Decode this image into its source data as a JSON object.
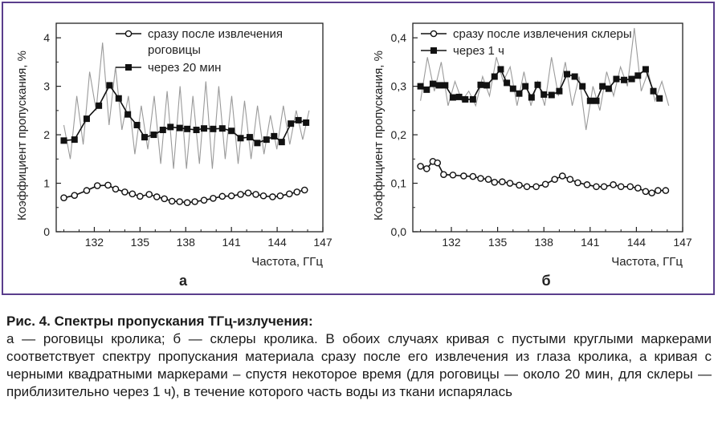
{
  "caption": {
    "title": "Рис. 4. Спектры пропускания ТГц-излучения:",
    "text": "а — роговицы кролика; б — склеры кролика. В обоих случаях кривая с пустыми круглыми маркерами соответствует спектру пропускания материала сразу после его извлечения из глаза кролика, а кривая с черными квадратными маркерами – спустя некоторое время (для роговицы — около 20 мин, для склеры — приблизительно через 1 ч), в течение которого часть воды из ткани испарялась"
  },
  "colors": {
    "frame": "#5a3e8c",
    "raw": "#9a9a9a",
    "marker": "#111111"
  },
  "chart_data": [
    {
      "panel_label": "а",
      "type": "line",
      "xlabel": "Частота, ГГц",
      "ylabel": "Коэффициент пропускания, %",
      "xlim": [
        129.5,
        147
      ],
      "ylim": [
        0,
        4.3
      ],
      "xticks": [
        132,
        135,
        138,
        141,
        144,
        147
      ],
      "yticks": [
        0,
        1,
        2,
        3,
        4
      ],
      "legend_position": "top",
      "series": [
        {
          "name": "сразу после извлечения роговицы",
          "marker": "open-circle",
          "x": [
            130.0,
            130.7,
            131.5,
            132.2,
            132.9,
            133.4,
            134.0,
            134.5,
            135.0,
            135.6,
            136.1,
            136.6,
            137.1,
            137.6,
            138.1,
            138.6,
            139.2,
            139.8,
            140.4,
            141.0,
            141.6,
            142.1,
            142.6,
            143.1,
            143.7,
            144.2,
            144.8,
            145.3,
            145.8
          ],
          "values": [
            0.7,
            0.75,
            0.85,
            0.95,
            0.96,
            0.88,
            0.82,
            0.78,
            0.73,
            0.77,
            0.72,
            0.68,
            0.63,
            0.62,
            0.6,
            0.62,
            0.65,
            0.69,
            0.73,
            0.74,
            0.77,
            0.8,
            0.77,
            0.74,
            0.72,
            0.74,
            0.78,
            0.82,
            0.86
          ]
        },
        {
          "name": "через 20 мин",
          "marker": "filled-square",
          "x": [
            130.0,
            130.7,
            131.5,
            132.3,
            133.0,
            133.6,
            134.2,
            134.8,
            135.3,
            135.9,
            136.5,
            137.0,
            137.6,
            138.1,
            138.7,
            139.2,
            139.8,
            140.4,
            141.0,
            141.6,
            142.2,
            142.7,
            143.3,
            143.8,
            144.3,
            144.9,
            145.4,
            145.9
          ],
          "values": [
            1.88,
            1.9,
            2.33,
            2.6,
            3.02,
            2.75,
            2.42,
            2.2,
            1.95,
            2.0,
            2.1,
            2.16,
            2.14,
            2.12,
            2.1,
            2.13,
            2.12,
            2.13,
            2.08,
            1.93,
            1.95,
            1.83,
            1.9,
            1.97,
            1.85,
            2.23,
            2.3,
            2.25
          ]
        }
      ],
      "raw_trace": [
        2.2,
        1.5,
        2.8,
        1.8,
        3.3,
        2.5,
        3.9,
        2.2,
        3.4,
        2.1,
        2.8,
        1.6,
        2.6,
        1.7,
        2.8,
        1.4,
        2.9,
        1.3,
        3.0,
        1.3,
        2.8,
        1.4,
        3.1,
        1.3,
        3.0,
        1.5,
        2.8,
        1.4,
        2.7,
        1.5,
        2.6,
        1.6,
        2.4,
        1.7,
        2.6,
        1.8,
        2.5,
        1.9,
        2.5
      ]
    },
    {
      "panel_label": "б",
      "type": "line",
      "xlabel": "Частота, ГГц",
      "ylabel": "Коэффициент пропускания, %",
      "xlim": [
        129.5,
        147
      ],
      "ylim": [
        0,
        0.43
      ],
      "xticks": [
        132,
        135,
        138,
        141,
        144,
        147
      ],
      "yticks": [
        0,
        0.1,
        0.2,
        0.3,
        0.4
      ],
      "legend_position": "top",
      "series": [
        {
          "name": "сразу после извлечения склеры",
          "marker": "open-circle",
          "x": [
            130.0,
            130.4,
            130.8,
            131.1,
            131.5,
            132.1,
            132.8,
            133.4,
            133.9,
            134.4,
            134.8,
            135.3,
            135.8,
            136.4,
            136.9,
            137.5,
            138.1,
            138.7,
            139.2,
            139.7,
            140.2,
            140.8,
            141.4,
            141.9,
            142.5,
            143.0,
            143.6,
            144.1,
            144.6,
            145.0,
            145.4,
            145.9
          ],
          "values": [
            0.135,
            0.13,
            0.145,
            0.142,
            0.118,
            0.117,
            0.115,
            0.114,
            0.11,
            0.108,
            0.102,
            0.103,
            0.1,
            0.096,
            0.093,
            0.093,
            0.098,
            0.108,
            0.115,
            0.108,
            0.101,
            0.097,
            0.093,
            0.093,
            0.097,
            0.093,
            0.093,
            0.09,
            0.083,
            0.08,
            0.085,
            0.085
          ]
        },
        {
          "name": "через 1 ч",
          "marker": "filled-square",
          "x": [
            130.0,
            130.4,
            130.8,
            131.2,
            131.6,
            132.1,
            132.5,
            132.9,
            133.4,
            133.9,
            134.3,
            134.8,
            135.2,
            135.6,
            136.0,
            136.4,
            136.8,
            137.2,
            137.6,
            138.0,
            138.5,
            139.0,
            139.5,
            140.0,
            140.5,
            141.0,
            141.4,
            141.8,
            142.2,
            142.7,
            143.2,
            143.7,
            144.1,
            144.6,
            145.1,
            145.5
          ],
          "values": [
            0.3,
            0.293,
            0.305,
            0.302,
            0.302,
            0.277,
            0.278,
            0.273,
            0.273,
            0.303,
            0.302,
            0.32,
            0.335,
            0.307,
            0.295,
            0.285,
            0.3,
            0.277,
            0.303,
            0.283,
            0.282,
            0.29,
            0.325,
            0.32,
            0.3,
            0.27,
            0.27,
            0.3,
            0.295,
            0.315,
            0.313,
            0.315,
            0.322,
            0.335,
            0.29,
            0.275
          ]
        }
      ],
      "raw_trace": [
        0.27,
        0.36,
        0.29,
        0.35,
        0.26,
        0.31,
        0.27,
        0.29,
        0.26,
        0.32,
        0.28,
        0.36,
        0.31,
        0.34,
        0.26,
        0.33,
        0.26,
        0.31,
        0.26,
        0.36,
        0.28,
        0.35,
        0.26,
        0.32,
        0.21,
        0.3,
        0.25,
        0.33,
        0.28,
        0.34,
        0.3,
        0.42,
        0.29,
        0.33,
        0.27,
        0.31,
        0.26
      ]
    }
  ]
}
